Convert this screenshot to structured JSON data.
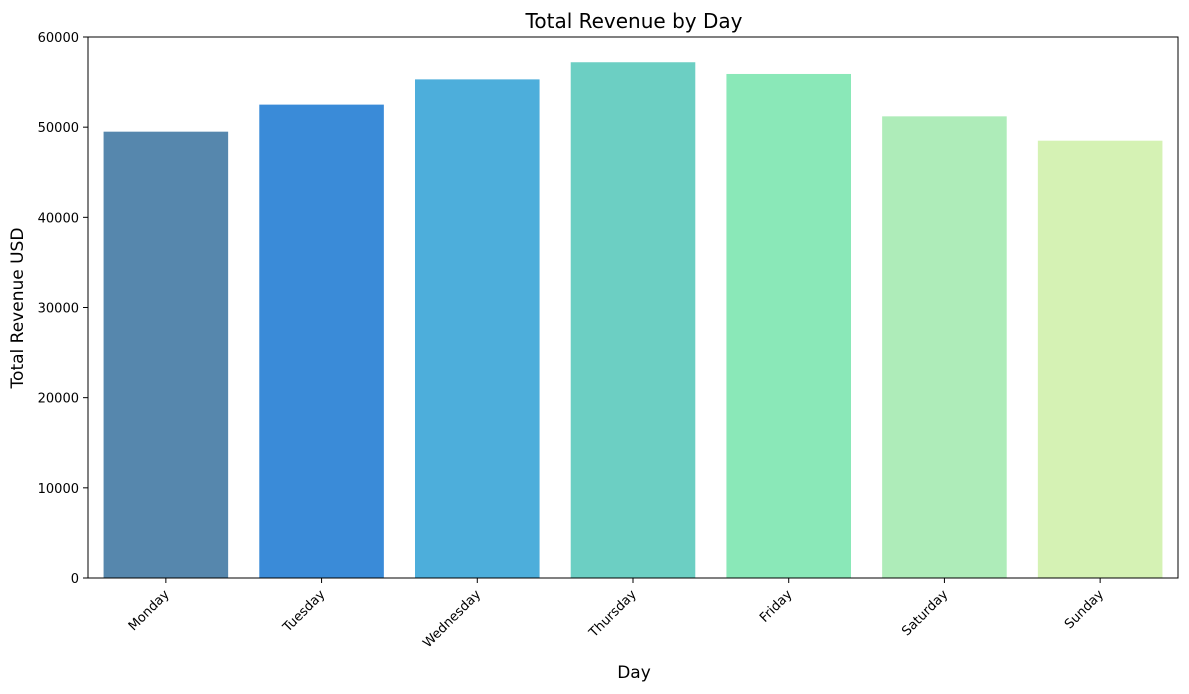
{
  "chart_data": {
    "type": "bar",
    "title": "Total Revenue by Day",
    "xlabel": "Day",
    "ylabel": "Total Revenue USD",
    "categories": [
      "Monday",
      "Tuesday",
      "Wednesday",
      "Thursday",
      "Friday",
      "Saturday",
      "Sunday"
    ],
    "values": [
      49500,
      52500,
      55300,
      57200,
      55900,
      51200,
      48500
    ],
    "colors": [
      "#5687ad",
      "#3a8bd8",
      "#4daedb",
      "#6ccfc3",
      "#8ae8b8",
      "#aeecb9",
      "#d5f2b4"
    ],
    "ylim": [
      0,
      60000
    ],
    "yticks": [
      0,
      10000,
      20000,
      30000,
      40000,
      50000,
      60000
    ],
    "grid": false,
    "legend": "none"
  }
}
